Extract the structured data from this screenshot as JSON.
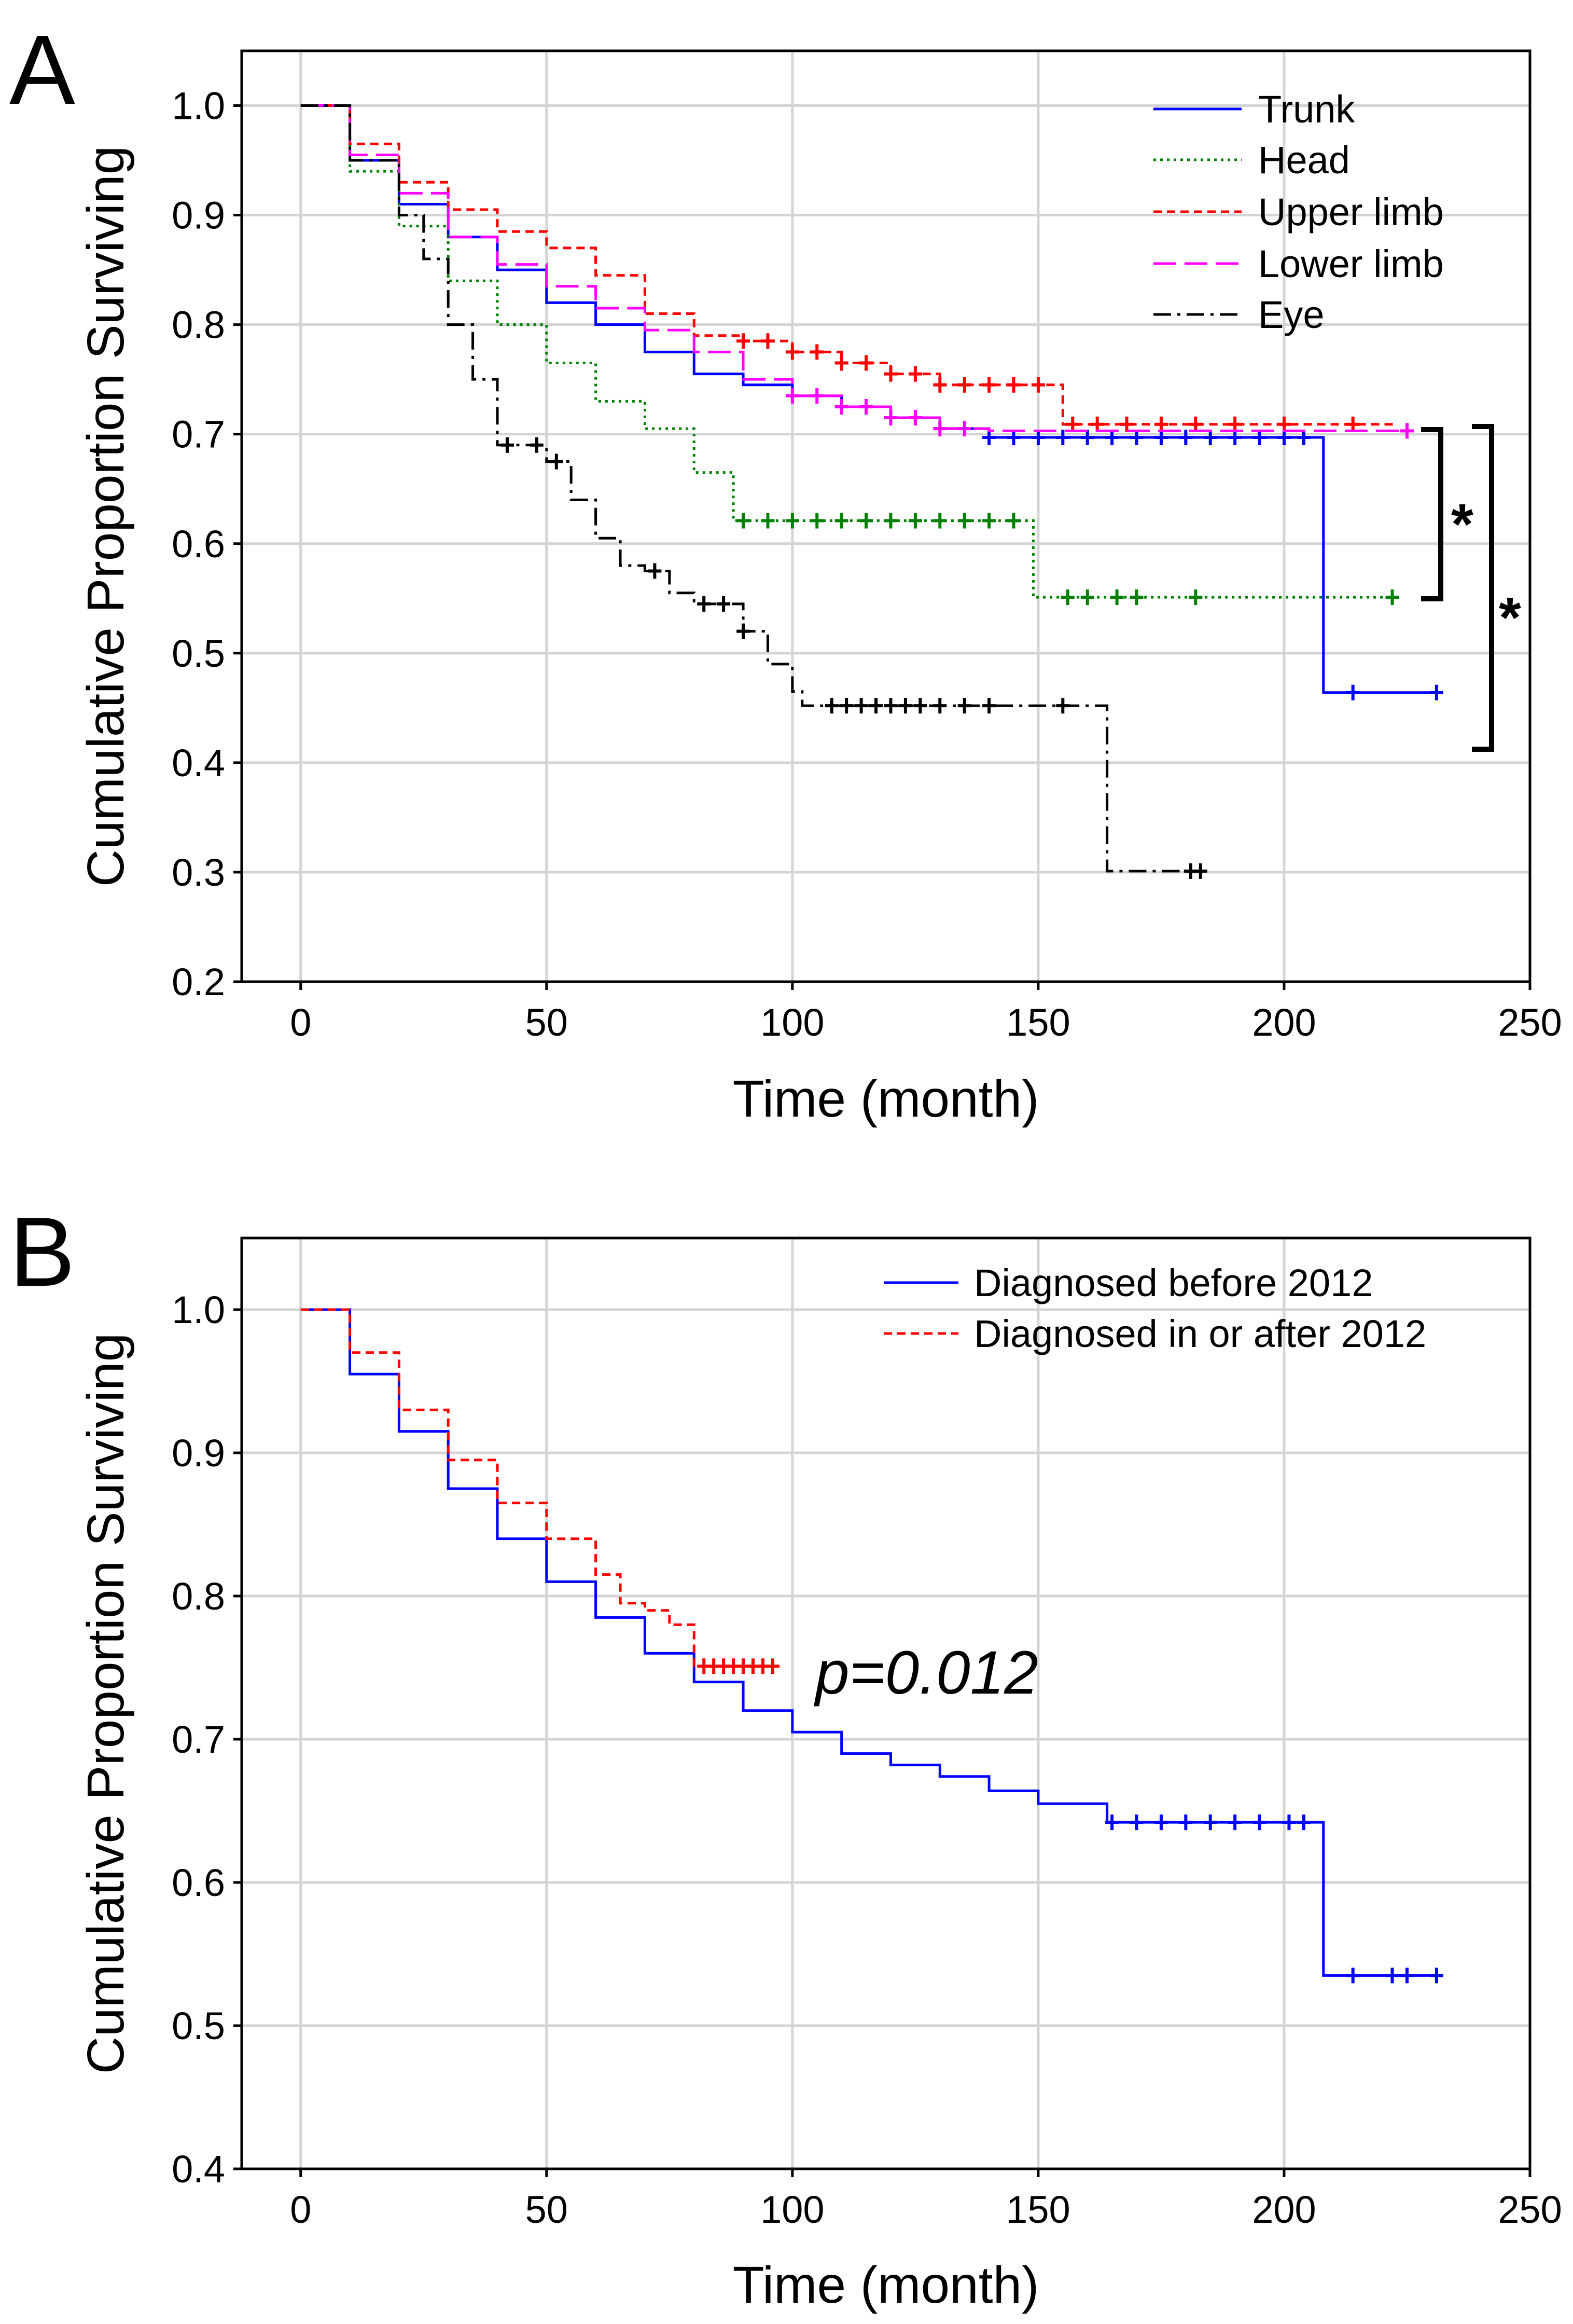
{
  "colors": {
    "trunk": "#0000ff",
    "head": "#008000",
    "upper_limb": "#ff0000",
    "lower_limb": "#ff00ff",
    "eye": "#000000",
    "before_2012": "#0000ff",
    "after_2012": "#ff0000"
  },
  "chart_data": [
    {
      "panel": "A",
      "type": "line",
      "subtype": "kaplan-meier",
      "xlabel": "Time (month)",
      "ylabel": "Cumulative Proportion Surviving",
      "xlim": [
        -12,
        250
      ],
      "ylim": [
        0.2,
        1.05
      ],
      "xticks": [
        0,
        50,
        100,
        150,
        200,
        250
      ],
      "yticks": [
        0.2,
        0.3,
        0.4,
        0.5,
        0.6,
        0.7,
        0.8,
        0.9,
        1.0
      ],
      "xtick_labels": [
        "0",
        "50",
        "100",
        "150",
        "200",
        "250"
      ],
      "ytick_labels": [
        "0.2",
        "0.3",
        "0.4",
        "0.5",
        "0.6",
        "0.7",
        "0.8",
        "0.9",
        "1.0"
      ],
      "grid": true,
      "legend_position": "top-right",
      "series": [
        {
          "name": "Trunk",
          "color_key": "trunk",
          "dash": "solid",
          "x": [
            0,
            10,
            20,
            30,
            40,
            50,
            60,
            70,
            80,
            90,
            100,
            110,
            120,
            130,
            140,
            208,
            208,
            231
          ],
          "y": [
            1.0,
            0.95,
            0.91,
            0.88,
            0.85,
            0.82,
            0.8,
            0.775,
            0.755,
            0.745,
            0.735,
            0.725,
            0.715,
            0.705,
            0.697,
            0.697,
            0.464,
            0.464
          ],
          "censor_x": [
            140,
            145,
            150,
            155,
            160,
            165,
            170,
            175,
            180,
            185,
            190,
            195,
            200,
            204,
            214,
            231
          ]
        },
        {
          "name": "Head",
          "color_key": "head",
          "dash": "dotted",
          "x": [
            0,
            10,
            20,
            30,
            40,
            50,
            60,
            70,
            80,
            88,
            149,
            149,
            222
          ],
          "y": [
            1.0,
            0.94,
            0.89,
            0.84,
            0.8,
            0.765,
            0.73,
            0.705,
            0.665,
            0.621,
            0.621,
            0.551,
            0.551
          ],
          "censor_x": [
            90,
            95,
            100,
            105,
            110,
            115,
            120,
            125,
            130,
            135,
            140,
            145,
            156,
            160,
            166,
            170,
            182,
            222
          ]
        },
        {
          "name": "Upper limb",
          "color_key": "upper_limb",
          "dash": "dashed",
          "x": [
            0,
            10,
            20,
            30,
            40,
            50,
            60,
            70,
            80,
            90,
            100,
            110,
            120,
            130,
            155,
            155,
            223
          ],
          "y": [
            1.0,
            0.965,
            0.93,
            0.905,
            0.885,
            0.87,
            0.845,
            0.81,
            0.79,
            0.785,
            0.775,
            0.765,
            0.755,
            0.745,
            0.745,
            0.709,
            0.709
          ],
          "censor_x": [
            90,
            95,
            100,
            105,
            110,
            115,
            120,
            125,
            130,
            135,
            140,
            145,
            150,
            157,
            162,
            168,
            175,
            182,
            190,
            200,
            214
          ]
        },
        {
          "name": "Lower limb",
          "color_key": "lower_limb",
          "dash": "longdash",
          "x": [
            0,
            10,
            20,
            30,
            40,
            50,
            60,
            70,
            80,
            90,
            100,
            110,
            120,
            130,
            140,
            225
          ],
          "y": [
            1.0,
            0.955,
            0.92,
            0.88,
            0.855,
            0.835,
            0.815,
            0.795,
            0.775,
            0.75,
            0.735,
            0.725,
            0.715,
            0.705,
            0.703,
            0.703
          ],
          "censor_x": [
            100,
            105,
            110,
            115,
            120,
            125,
            130,
            135,
            225
          ]
        },
        {
          "name": "Eye",
          "color_key": "eye",
          "dash": "dashdot",
          "x": [
            0,
            10,
            20,
            25,
            30,
            35,
            40,
            50,
            55,
            60,
            65,
            70,
            75,
            80,
            90,
            95,
            100,
            102,
            164,
            164,
            183
          ],
          "y": [
            1.0,
            0.95,
            0.9,
            0.86,
            0.8,
            0.75,
            0.69,
            0.675,
            0.64,
            0.605,
            0.58,
            0.575,
            0.555,
            0.545,
            0.52,
            0.49,
            0.465,
            0.452,
            0.452,
            0.301,
            0.301
          ],
          "censor_x": [
            42,
            48,
            52,
            72,
            82,
            86,
            90,
            108,
            111,
            114,
            117,
            120,
            123,
            126,
            130,
            135,
            140,
            155,
            181,
            183
          ]
        }
      ],
      "annotations": [
        {
          "text": "*",
          "between": [
            "Trunk",
            "Head"
          ]
        },
        {
          "text": "*",
          "between": [
            "Trunk",
            "Eye"
          ]
        }
      ]
    },
    {
      "panel": "B",
      "type": "line",
      "subtype": "kaplan-meier",
      "xlabel": "Time (month)",
      "ylabel": "Cumulative Proportion Surviving",
      "xlim": [
        -12,
        250
      ],
      "ylim": [
        0.4,
        1.05
      ],
      "xticks": [
        0,
        50,
        100,
        150,
        200,
        250
      ],
      "yticks": [
        0.4,
        0.5,
        0.6,
        0.7,
        0.8,
        0.9,
        1.0
      ],
      "xtick_labels": [
        "0",
        "50",
        "100",
        "150",
        "200",
        "250"
      ],
      "ytick_labels": [
        "0.4",
        "0.5",
        "0.6",
        "0.7",
        "0.8",
        "0.9",
        "1.0"
      ],
      "grid": true,
      "legend_position": "top-right",
      "series": [
        {
          "name": "Diagnosed before 2012",
          "color_key": "before_2012",
          "dash": "solid",
          "x": [
            0,
            10,
            20,
            30,
            40,
            50,
            60,
            70,
            80,
            90,
            100,
            110,
            120,
            130,
            140,
            150,
            164,
            208,
            208,
            231
          ],
          "y": [
            1.0,
            0.955,
            0.915,
            0.875,
            0.84,
            0.81,
            0.785,
            0.76,
            0.74,
            0.72,
            0.705,
            0.69,
            0.682,
            0.674,
            0.664,
            0.655,
            0.642,
            0.642,
            0.535,
            0.535
          ],
          "censor_x": [
            165,
            170,
            175,
            180,
            185,
            190,
            195,
            201,
            204,
            214,
            222,
            225,
            231
          ]
        },
        {
          "name": "Diagnosed in or after 2012",
          "color_key": "after_2012",
          "dash": "dashed",
          "x": [
            0,
            10,
            20,
            30,
            40,
            50,
            60,
            65,
            70,
            75,
            80,
            80,
            96
          ],
          "y": [
            1.0,
            0.97,
            0.93,
            0.895,
            0.865,
            0.84,
            0.815,
            0.795,
            0.79,
            0.78,
            0.76,
            0.751,
            0.751
          ],
          "censor_x": [
            82,
            84,
            86,
            88,
            90,
            92,
            94,
            96
          ]
        }
      ],
      "annotations": [
        {
          "text": "p=0.012"
        }
      ]
    }
  ]
}
